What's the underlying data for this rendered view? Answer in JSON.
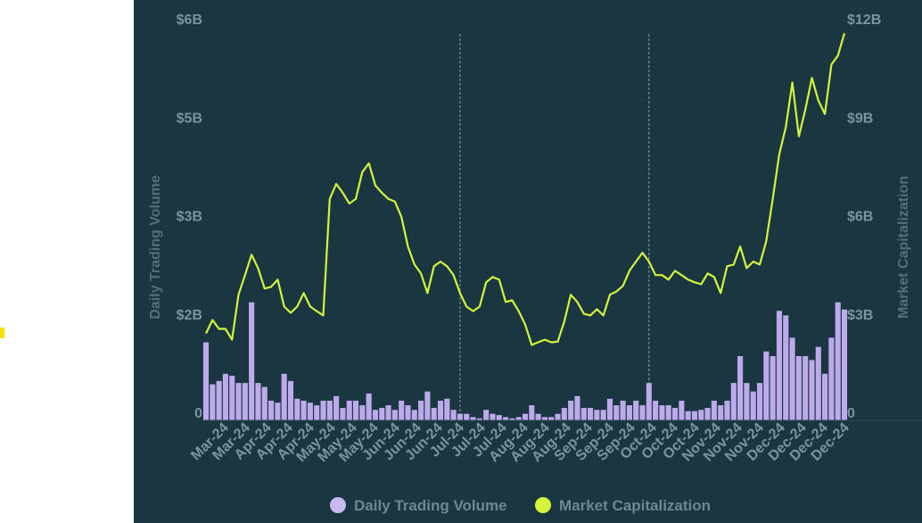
{
  "chart_data": {
    "type": "bar+line",
    "title": "",
    "ylabel_left": "Daily Trading Volume",
    "ylabel_right": "Market Capitalization",
    "ylim_left": [
      0,
      6
    ],
    "ylim_right": [
      0,
      12
    ],
    "yticks_left": [
      "0",
      "$2B",
      "$3B",
      "$5B",
      "$6B"
    ],
    "yticks_right": [
      "0",
      "$3B",
      "$6B",
      "$9B",
      "$12B"
    ],
    "yunit": "billions USD",
    "xticks": [
      "Mar-24",
      "Mar-24",
      "Apr-24",
      "Apr-24",
      "Apr-24",
      "May-24",
      "May-24",
      "May-24",
      "Jun-24",
      "Jun-24",
      "Jun-24",
      "Jul-24",
      "Jul-24",
      "Jul-24",
      "Aug-24",
      "Aug-24",
      "Aug-24",
      "Sep-24",
      "Sep-24",
      "Sep-24",
      "Oct-24",
      "Oct-24",
      "Oct-24",
      "Nov-24",
      "Nov-24",
      "Nov-24",
      "Dec-24",
      "Dec-24",
      "Dec-24",
      "Dec-24"
    ],
    "grid": false,
    "legend_position": "bottom",
    "markers": [
      "2024-06-26",
      "2024-09-21"
    ],
    "dates": [
      "2024-03-01",
      "2024-03-04",
      "2024-03-07",
      "2024-03-10",
      "2024-03-13",
      "2024-03-16",
      "2024-03-19",
      "2024-03-22",
      "2024-03-25",
      "2024-03-28",
      "2024-03-31",
      "2024-04-03",
      "2024-04-06",
      "2024-04-09",
      "2024-04-12",
      "2024-04-15",
      "2024-04-18",
      "2024-04-21",
      "2024-04-24",
      "2024-04-27",
      "2024-04-30",
      "2024-05-03",
      "2024-05-06",
      "2024-05-09",
      "2024-05-12",
      "2024-05-15",
      "2024-05-18",
      "2024-05-21",
      "2024-05-24",
      "2024-05-27",
      "2024-05-30",
      "2024-06-02",
      "2024-06-05",
      "2024-06-08",
      "2024-06-11",
      "2024-06-14",
      "2024-06-17",
      "2024-06-20",
      "2024-06-23",
      "2024-06-26",
      "2024-06-29",
      "2024-07-02",
      "2024-07-05",
      "2024-07-08",
      "2024-07-11",
      "2024-07-14",
      "2024-07-17",
      "2024-07-20",
      "2024-07-23",
      "2024-07-26",
      "2024-07-29",
      "2024-08-01",
      "2024-08-04",
      "2024-08-07",
      "2024-08-10",
      "2024-08-13",
      "2024-08-16",
      "2024-08-19",
      "2024-08-22",
      "2024-08-25",
      "2024-08-28",
      "2024-08-31",
      "2024-09-03",
      "2024-09-06",
      "2024-09-09",
      "2024-09-12",
      "2024-09-15",
      "2024-09-18",
      "2024-09-21",
      "2024-09-24",
      "2024-09-27",
      "2024-09-30",
      "2024-10-03",
      "2024-10-06",
      "2024-10-09",
      "2024-10-12",
      "2024-10-15",
      "2024-10-18",
      "2024-10-21",
      "2024-10-24",
      "2024-10-27",
      "2024-10-30",
      "2024-11-02",
      "2024-11-05",
      "2024-11-08",
      "2024-11-11",
      "2024-11-14",
      "2024-11-17",
      "2024-11-20",
      "2024-11-23",
      "2024-11-26",
      "2024-11-29",
      "2024-12-02",
      "2024-12-05",
      "2024-12-08",
      "2024-12-11",
      "2024-12-14",
      "2024-12-17",
      "2024-12-20"
    ],
    "series": [
      {
        "name": "Daily Trading Volume",
        "type": "bar",
        "axis": "left",
        "color": "#bcaaea",
        "values": [
          1.19,
          0.55,
          0.6,
          0.71,
          0.68,
          0.57,
          0.57,
          1.8,
          0.57,
          0.51,
          0.3,
          0.27,
          0.71,
          0.6,
          0.33,
          0.3,
          0.27,
          0.23,
          0.3,
          0.3,
          0.37,
          0.19,
          0.3,
          0.3,
          0.23,
          0.41,
          0.16,
          0.19,
          0.23,
          0.16,
          0.3,
          0.23,
          0.16,
          0.3,
          0.44,
          0.19,
          0.3,
          0.33,
          0.16,
          0.1,
          0.1,
          0.05,
          0.03,
          0.16,
          0.1,
          0.08,
          0.05,
          0.03,
          0.05,
          0.1,
          0.23,
          0.1,
          0.05,
          0.05,
          0.1,
          0.19,
          0.3,
          0.37,
          0.19,
          0.19,
          0.16,
          0.16,
          0.33,
          0.23,
          0.3,
          0.23,
          0.3,
          0.23,
          0.57,
          0.3,
          0.23,
          0.23,
          0.19,
          0.3,
          0.14,
          0.14,
          0.16,
          0.19,
          0.3,
          0.23,
          0.3,
          0.57,
          0.98,
          0.57,
          0.44,
          0.57,
          1.05,
          0.98,
          1.67,
          1.6,
          1.26,
          0.98,
          0.98,
          0.92,
          1.12,
          0.71,
          1.26,
          1.8,
          1.69
        ]
      },
      {
        "name": "Market Capitalization",
        "type": "line",
        "axis": "right",
        "color": "#d4f53c",
        "values": [
          2.65,
          3.06,
          2.79,
          2.79,
          2.46,
          3.83,
          4.43,
          5.05,
          4.64,
          4.02,
          4.07,
          4.29,
          3.47,
          3.28,
          3.47,
          3.88,
          3.47,
          3.33,
          3.2,
          6.75,
          7.21,
          6.94,
          6.61,
          6.75,
          7.57,
          7.84,
          7.16,
          6.94,
          6.75,
          6.67,
          6.2,
          5.3,
          4.75,
          4.48,
          3.88,
          4.7,
          4.84,
          4.7,
          4.43,
          3.88,
          3.47,
          3.33,
          3.47,
          4.21,
          4.37,
          4.29,
          3.61,
          3.66,
          3.33,
          2.92,
          2.3,
          2.38,
          2.46,
          2.38,
          2.4,
          3.01,
          3.83,
          3.61,
          3.25,
          3.2,
          3.39,
          3.2,
          3.83,
          3.93,
          4.1,
          4.56,
          4.84,
          5.11,
          4.84,
          4.43,
          4.43,
          4.29,
          4.56,
          4.43,
          4.29,
          4.21,
          4.15,
          4.48,
          4.37,
          3.88,
          4.7,
          4.75,
          5.3,
          4.64,
          4.84,
          4.75,
          5.46,
          6.75,
          8.11,
          8.93,
          10.3,
          8.66,
          9.48,
          10.44,
          9.75,
          9.34,
          10.85,
          11.12,
          11.8
        ]
      }
    ]
  },
  "colors": {
    "background": "#1a3640",
    "axis_text": "#7c959c",
    "marker_line": "#8aa0a6"
  }
}
